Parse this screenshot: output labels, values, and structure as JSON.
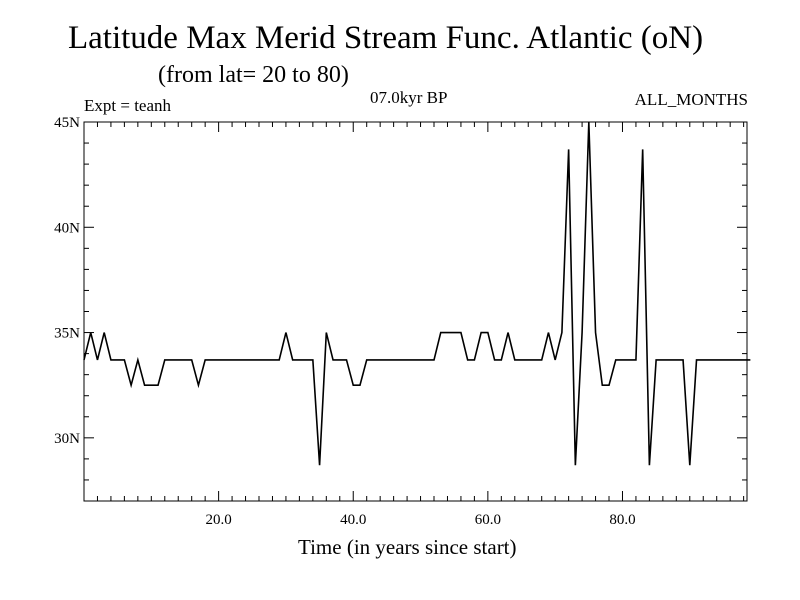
{
  "chart_data": {
    "type": "line",
    "title": "Latitude Max Merid Stream Func. Atlantic (oN)",
    "subtitle": "(from lat= 20 to 80)",
    "period_label": "07.0kyr BP",
    "experiment_label": "Expt = teanh",
    "months_label": "ALL_MONTHS",
    "xlabel": "Time (in years since start)",
    "ylabel": "",
    "xlim": [
      0,
      98.5
    ],
    "ylim": [
      27,
      45
    ],
    "x_ticks": [
      20,
      40,
      60,
      80
    ],
    "x_tick_labels": [
      "20.0",
      "40.0",
      "60.0",
      "80.0"
    ],
    "y_ticks": [
      30,
      35,
      40,
      45
    ],
    "y_tick_labels": [
      "30N",
      "35N",
      "40N",
      "45N"
    ],
    "series": [
      {
        "name": "teanh",
        "color": "#000000",
        "x": [
          0,
          1,
          2,
          3,
          4,
          5,
          6,
          7,
          8,
          9,
          10,
          11,
          12,
          13,
          14,
          15,
          16,
          17,
          18,
          19,
          20,
          21,
          22,
          23,
          24,
          25,
          26,
          27,
          28,
          29,
          30,
          31,
          32,
          33,
          34,
          35,
          36,
          37,
          38,
          39,
          40,
          41,
          42,
          43,
          44,
          45,
          46,
          47,
          48,
          49,
          50,
          51,
          52,
          53,
          54,
          55,
          56,
          57,
          58,
          59,
          60,
          61,
          62,
          63,
          64,
          65,
          66,
          67,
          68,
          69,
          70,
          71,
          72,
          73,
          74,
          75,
          76,
          77,
          78,
          79,
          80,
          81,
          82,
          83,
          84,
          85,
          86,
          87,
          88,
          89,
          90,
          91,
          92,
          93,
          94,
          95,
          96,
          97,
          98,
          99
        ],
        "values": [
          33.7,
          35.0,
          33.7,
          35.0,
          33.7,
          33.7,
          33.7,
          32.5,
          33.7,
          32.5,
          32.5,
          32.5,
          33.7,
          33.7,
          33.7,
          33.7,
          33.7,
          32.5,
          33.7,
          33.7,
          33.7,
          33.7,
          33.7,
          33.7,
          33.7,
          33.7,
          33.7,
          33.7,
          33.7,
          33.7,
          35.0,
          33.7,
          33.7,
          33.7,
          33.7,
          28.7,
          35.0,
          33.7,
          33.7,
          33.7,
          32.5,
          32.5,
          33.7,
          33.7,
          33.7,
          33.7,
          33.7,
          33.7,
          33.7,
          33.7,
          33.7,
          33.7,
          33.7,
          35.0,
          35.0,
          35.0,
          35.0,
          33.7,
          33.7,
          35.0,
          35.0,
          33.7,
          33.7,
          35.0,
          33.7,
          33.7,
          33.7,
          33.7,
          33.7,
          35.0,
          33.7,
          35.0,
          43.7,
          28.7,
          35.0,
          45.0,
          35.0,
          32.5,
          32.5,
          33.7,
          33.7,
          33.7,
          33.7,
          43.7,
          28.7,
          33.7,
          33.7,
          33.7,
          33.7,
          33.7,
          28.7,
          33.7,
          33.7,
          33.7,
          33.7,
          33.7,
          33.7,
          33.7,
          33.7,
          33.7
        ]
      }
    ]
  }
}
